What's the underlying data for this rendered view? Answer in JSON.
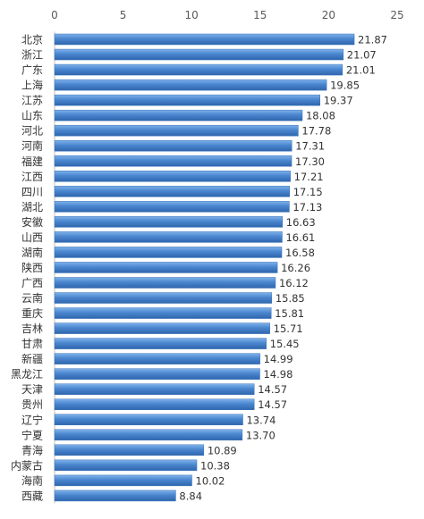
{
  "chart_data": {
    "type": "bar",
    "orientation": "horizontal",
    "title": "",
    "xlabel": "",
    "ylabel": "",
    "xlim": [
      0,
      25
    ],
    "xticks": [
      0,
      5,
      10,
      15,
      20,
      25
    ],
    "x_axis_position": "top",
    "grid": false,
    "bar_color": "#4a86cf",
    "categories": [
      "北京",
      "浙江",
      "广东",
      "上海",
      "江苏",
      "山东",
      "河北",
      "河南",
      "福建",
      "江西",
      "四川",
      "湖北",
      "安徽",
      "山西",
      "湖南",
      "陕西",
      "广西",
      "云南",
      "重庆",
      "吉林",
      "甘肃",
      "新疆",
      "黑龙江",
      "天津",
      "贵州",
      "辽宁",
      "宁夏",
      "青海",
      "内蒙古",
      "海南",
      "西藏"
    ],
    "values": [
      21.87,
      21.07,
      21.01,
      19.85,
      19.37,
      18.08,
      17.78,
      17.31,
      17.3,
      17.21,
      17.15,
      17.13,
      16.63,
      16.61,
      16.58,
      16.26,
      16.12,
      15.85,
      15.81,
      15.71,
      15.45,
      14.99,
      14.98,
      14.57,
      14.57,
      13.74,
      13.7,
      10.89,
      10.38,
      10.02,
      8.84
    ],
    "value_labels": [
      "21.87",
      "21.07",
      "21.01",
      "19.85",
      "19.37",
      "18.08",
      "17.78",
      "17.31",
      "17.30",
      "17.21",
      "17.15",
      "17.13",
      "16.63",
      "16.61",
      "16.58",
      "16.26",
      "16.12",
      "15.85",
      "15.81",
      "15.71",
      "15.45",
      "14.99",
      "14.98",
      "14.57",
      "14.57",
      "13.74",
      "13.70",
      "10.89",
      "10.38",
      "10.02",
      "8.84"
    ]
  }
}
